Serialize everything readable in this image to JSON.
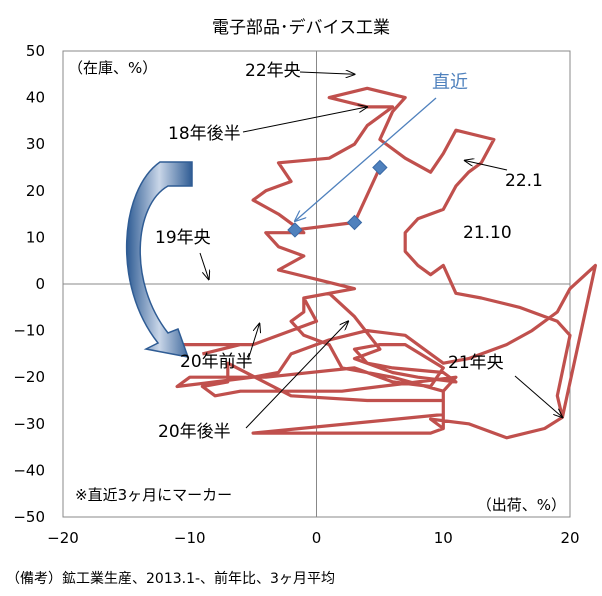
{
  "chart_data": {
    "type": "line",
    "title": "電子部品･デバイス工業",
    "y_unit_label": "（在庫、%）",
    "x_unit_label": "（出荷、%）",
    "xlim": [
      -20,
      20
    ],
    "ylim": [
      -50,
      50
    ],
    "x_ticks": [
      -20,
      -10,
      0,
      10,
      20
    ],
    "y_ticks": [
      50,
      40,
      30,
      20,
      10,
      0,
      -10,
      -20,
      -30,
      -40,
      -50
    ],
    "x_tick_labels": [
      "−20",
      "−10",
      "0",
      "10",
      "20"
    ],
    "y_tick_labels": [
      "50",
      "40",
      "30",
      "20",
      "10",
      "0",
      "−10",
      "−20",
      "−30",
      "−40",
      "−50"
    ],
    "series": [
      {
        "color": "#c0504d",
        "points": [
          [
            -9,
            -15
          ],
          [
            -6,
            -13
          ],
          [
            -11,
            -13
          ],
          [
            -5,
            -13
          ],
          [
            0,
            -8
          ],
          [
            -1,
            -3
          ],
          [
            1,
            -2
          ],
          [
            3,
            -7
          ],
          [
            5,
            -14
          ],
          [
            3,
            -16
          ],
          [
            6,
            -19
          ],
          [
            8,
            -20
          ],
          [
            11,
            -21
          ],
          [
            10,
            -19
          ],
          [
            6,
            -18
          ],
          [
            4,
            -17
          ],
          [
            3,
            -14
          ],
          [
            5,
            -13
          ],
          [
            7,
            -13
          ],
          [
            10,
            -18
          ],
          [
            9,
            -22
          ],
          [
            6,
            -21
          ],
          [
            3,
            -18
          ],
          [
            -4,
            -20
          ],
          [
            -10,
            -20
          ],
          [
            -11,
            -22
          ],
          [
            -8,
            -21
          ],
          [
            -5,
            -20
          ],
          [
            -3,
            -19
          ],
          [
            -2,
            -15
          ],
          [
            1,
            -12
          ],
          [
            4,
            -10
          ],
          [
            7,
            -11
          ],
          [
            9,
            -15
          ],
          [
            10,
            -17
          ],
          [
            12,
            -16
          ],
          [
            15,
            -13
          ],
          [
            17,
            -10
          ],
          [
            19,
            -6
          ],
          [
            20,
            -1
          ],
          [
            22,
            4
          ],
          [
            19.4,
            -28.6
          ],
          [
            18,
            -31
          ],
          [
            15,
            -33
          ],
          [
            12,
            -30
          ],
          [
            9,
            -29
          ],
          [
            10,
            -31
          ],
          [
            10,
            -23
          ],
          [
            11,
            -20
          ],
          [
            8,
            -21
          ],
          [
            5,
            -22
          ],
          [
            2,
            -23
          ],
          [
            -2,
            -23
          ],
          [
            -6,
            -23
          ],
          [
            -8,
            -24
          ],
          [
            -9,
            -22
          ],
          [
            -7,
            -21
          ],
          [
            -7,
            -17
          ],
          [
            -2,
            -24
          ],
          [
            4,
            -25
          ],
          [
            10,
            -25
          ],
          [
            10,
            -28
          ],
          [
            -5,
            -32
          ],
          [
            1,
            -32
          ],
          [
            9,
            -32
          ],
          [
            10,
            -31
          ],
          [
            10,
            -23
          ],
          [
            6,
            -20
          ],
          [
            2,
            -18
          ],
          [
            1,
            -13
          ],
          [
            -1,
            -11
          ],
          [
            -2,
            -8
          ],
          [
            -1,
            -6
          ],
          [
            -1,
            -3
          ],
          [
            1,
            -2
          ],
          [
            3,
            -1
          ],
          [
            0,
            1
          ],
          [
            -3,
            3
          ],
          [
            -1,
            6
          ],
          [
            -3,
            8
          ],
          [
            -4,
            11
          ],
          [
            -1,
            11
          ],
          [
            -3,
            15
          ],
          [
            -5,
            18
          ],
          [
            -4,
            20
          ],
          [
            -2,
            22
          ],
          [
            -3,
            26
          ],
          [
            1,
            27
          ],
          [
            3,
            30
          ],
          [
            4,
            34
          ],
          [
            6,
            38
          ],
          [
            4,
            38
          ],
          [
            1,
            40
          ],
          [
            4,
            42
          ],
          [
            7,
            40
          ],
          [
            6,
            37
          ],
          [
            5,
            31
          ],
          [
            7,
            27
          ],
          [
            9,
            24
          ],
          [
            10,
            28
          ],
          [
            11,
            33
          ],
          [
            14,
            31
          ],
          [
            13,
            26
          ],
          [
            12,
            24
          ],
          [
            11,
            21
          ],
          [
            10,
            16
          ],
          [
            8,
            14
          ],
          [
            7,
            11
          ],
          [
            7,
            7
          ],
          [
            8,
            4
          ],
          [
            9,
            2
          ],
          [
            10,
            4
          ],
          [
            11,
            -2
          ],
          [
            13,
            -3
          ],
          [
            16,
            -5
          ],
          [
            19,
            -8
          ],
          [
            20,
            -11
          ],
          [
            19,
            -24
          ],
          [
            19.4,
            -28.6
          ]
        ]
      }
    ],
    "highlighted_points": [
      [
        5,
        25
      ],
      [
        3,
        13.2
      ],
      [
        -1.7,
        11.6
      ]
    ],
    "annotations": [
      {
        "text": "22年央",
        "anchor": [
          3,
          45
        ]
      },
      {
        "text": "18年後半",
        "anchor": [
          4,
          38
        ]
      },
      {
        "text": "19年央",
        "anchor": [
          -8.5,
          1
        ]
      },
      {
        "text": "20年前半",
        "anchor": [
          -4.5,
          -8.5
        ]
      },
      {
        "text": "20年後半",
        "anchor": [
          2.5,
          -8
        ]
      },
      {
        "text": "21年央",
        "anchor": [
          19.4,
          -28.6
        ]
      },
      {
        "text": "22.1",
        "anchor": [
          11.7,
          26.5
        ]
      },
      {
        "text": "21.10",
        "anchor": null
      },
      {
        "text": "直近",
        "anchor": [
          -1.7,
          13.5
        ]
      }
    ],
    "note": "※直近3ヶ月にマーカー",
    "source": "（備考）鉱工業生産、2013.1-、前年比、3ヶ月平均",
    "grid": false
  }
}
